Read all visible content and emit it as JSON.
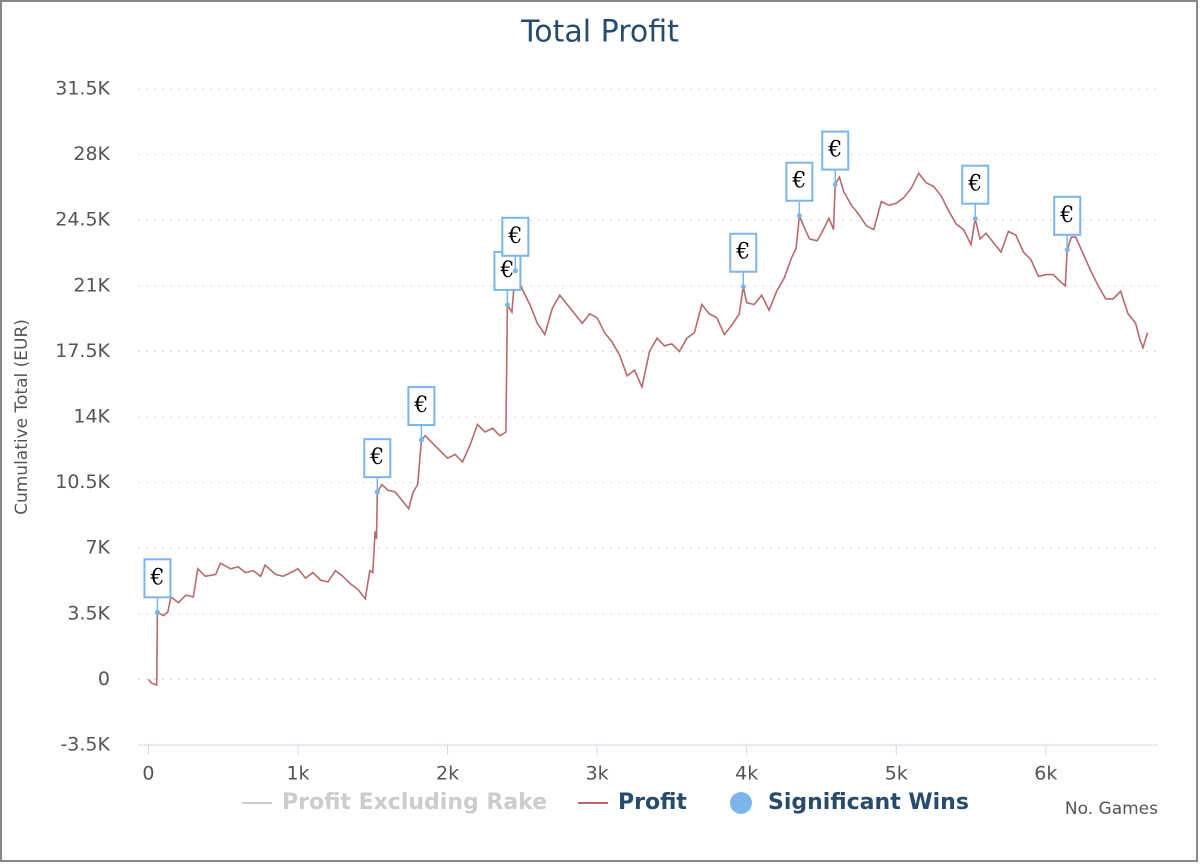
{
  "chart_data": {
    "type": "line",
    "title": "Total Profit",
    "x_label": "No. Games",
    "y_label": "Cumulative Total (EUR)",
    "xlim": [
      -70,
      6750
    ],
    "ylim": [
      -3500,
      31500
    ],
    "xticks": [
      0,
      {
        "value": 1000,
        "label": "1k"
      },
      {
        "value": 2000,
        "label": "2k"
      },
      {
        "value": 3000,
        "label": "3k"
      },
      {
        "value": 4000,
        "label": "4k"
      },
      {
        "value": 5000,
        "label": "5k"
      },
      {
        "value": 6000,
        "label": "6k"
      }
    ],
    "yticks": [
      {
        "value": -3500,
        "label": "-3.5K"
      },
      0,
      {
        "value": 3500,
        "label": "3.5K"
      },
      {
        "value": 7000,
        "label": "7K"
      },
      {
        "value": 10500,
        "label": "10.5K"
      },
      {
        "value": 14000,
        "label": "14K"
      },
      {
        "value": 17500,
        "label": "17.5K"
      },
      {
        "value": 21000,
        "label": "21K"
      },
      {
        "value": 24500,
        "label": "24.5K"
      },
      {
        "value": 28000,
        "label": "28K"
      },
      {
        "value": 31500,
        "label": "31.5K"
      }
    ],
    "grid": true,
    "legend": "bottom",
    "series": [
      {
        "name": "Profit Excluding Rake",
        "color": "#cccccc",
        "visible": false
      },
      {
        "name": "Profit",
        "color": "#b86a6a",
        "x": [
          0,
          20,
          55,
          60,
          100,
          130,
          150,
          200,
          250,
          300,
          330,
          380,
          450,
          480,
          550,
          600,
          650,
          700,
          750,
          780,
          850,
          900,
          950,
          1000,
          1050,
          1100,
          1150,
          1200,
          1250,
          1300,
          1350,
          1400,
          1450,
          1480,
          1500,
          1515,
          1525,
          1530,
          1560,
          1600,
          1650,
          1700,
          1740,
          1770,
          1800,
          1825,
          1850,
          1900,
          1950,
          2000,
          2050,
          2100,
          2150,
          2200,
          2250,
          2300,
          2350,
          2390,
          2400,
          2430,
          2453,
          2500,
          2550,
          2600,
          2650,
          2700,
          2750,
          2800,
          2850,
          2900,
          2950,
          3000,
          3050,
          3100,
          3150,
          3200,
          3250,
          3300,
          3350,
          3400,
          3450,
          3500,
          3550,
          3600,
          3650,
          3700,
          3750,
          3800,
          3850,
          3900,
          3950,
          3977,
          4000,
          4050,
          4100,
          4150,
          4200,
          4250,
          4300,
          4330,
          4352,
          4380,
          4420,
          4470,
          4500,
          4550,
          4580,
          4592,
          4620,
          4650,
          4700,
          4750,
          4800,
          4850,
          4900,
          4950,
          5000,
          5050,
          5100,
          5150,
          5200,
          5250,
          5300,
          5350,
          5400,
          5450,
          5500,
          5528,
          5560,
          5600,
          5650,
          5700,
          5750,
          5800,
          5850,
          5900,
          5950,
          6000,
          6050,
          6100,
          6130,
          6143,
          6170,
          6200,
          6250,
          6300,
          6350,
          6400,
          6450,
          6500,
          6550,
          6600,
          6630,
          6650,
          6680
        ],
        "values": [
          0,
          -200,
          -300,
          3580,
          3400,
          3600,
          4400,
          4100,
          4500,
          4400,
          5900,
          5500,
          5600,
          6200,
          5900,
          6000,
          5700,
          5800,
          5500,
          6100,
          5600,
          5500,
          5700,
          5900,
          5400,
          5700,
          5300,
          5200,
          5800,
          5500,
          5100,
          4800,
          4300,
          5800,
          5700,
          7900,
          7500,
          9990,
          10400,
          10100,
          10000,
          9500,
          9100,
          10000,
          10400,
          12770,
          13000,
          12600,
          12200,
          11800,
          12000,
          11600,
          12500,
          13600,
          13200,
          13400,
          13000,
          13200,
          19980,
          19600,
          21800,
          20800,
          20000,
          19000,
          18400,
          19800,
          20500,
          20000,
          19500,
          19000,
          19500,
          19300,
          18500,
          18000,
          17300,
          16200,
          16500,
          15600,
          17500,
          18200,
          17800,
          17900,
          17500,
          18200,
          18500,
          20000,
          19500,
          19300,
          18400,
          18900,
          19500,
          20950,
          20100,
          20000,
          20500,
          19700,
          20700,
          21400,
          22500,
          23000,
          24740,
          24200,
          23500,
          23400,
          23800,
          24600,
          24000,
          26400,
          26800,
          26000,
          25300,
          24800,
          24200,
          24000,
          25500,
          25300,
          25400,
          25700,
          26200,
          27000,
          26500,
          26300,
          25800,
          25000,
          24300,
          24000,
          23200,
          24580,
          23500,
          23800,
          23300,
          22800,
          23900,
          23700,
          22800,
          22400,
          21500,
          21600,
          21600,
          21200,
          21000,
          22920,
          23600,
          23600,
          22700,
          21800,
          21000,
          20300,
          20300,
          20700,
          19500,
          19000,
          18100,
          17700,
          18500
        ]
      },
      {
        "name": "Significant Wins",
        "color": "#7cb5ec",
        "marker_label": "€",
        "x": [
          60,
          1530,
          1825,
          2400,
          2453,
          3977,
          4352,
          4592,
          5528,
          6143
        ],
        "values": [
          3580,
          9990,
          12770,
          19980,
          21800,
          20950,
          24740,
          26400,
          24580,
          22920
        ]
      }
    ]
  }
}
